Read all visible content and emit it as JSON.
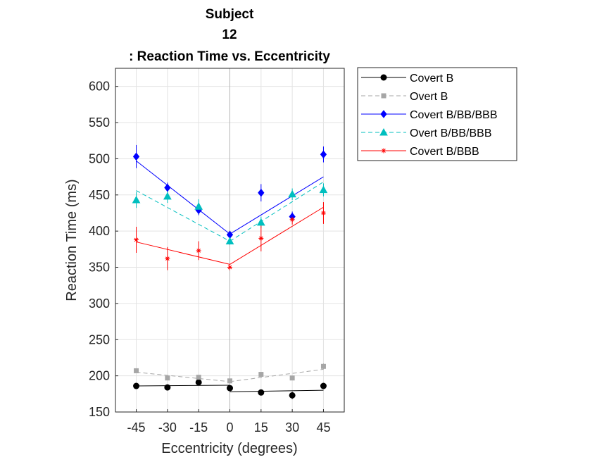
{
  "chart_data": {
    "type": "scatter",
    "title_lines": [
      "Subject",
      "12",
      ": Reaction Time vs. Eccentricity"
    ],
    "xlabel": "Eccentricity (degrees)",
    "ylabel": "Reaction Time (ms)",
    "xticks": [
      -45,
      -30,
      -15,
      0,
      15,
      30,
      45
    ],
    "xtick_labels": [
      "-45",
      "-30",
      "-15",
      "0",
      "15",
      "30",
      "45"
    ],
    "yticks": [
      150,
      200,
      250,
      300,
      350,
      400,
      450,
      500,
      550,
      600
    ],
    "ytick_labels": [
      "150",
      "200",
      "250",
      "300",
      "350",
      "400",
      "450",
      "500",
      "550",
      "600"
    ],
    "xlim": [
      -55,
      55
    ],
    "ylim": [
      150,
      625
    ],
    "grid": true,
    "legend_position": "outside-right-top",
    "series": [
      {
        "name": "Covert B",
        "color": "#000000",
        "marker": "circle",
        "line": "solid",
        "x": [
          -45,
          -30,
          -15,
          0,
          15,
          30,
          45
        ],
        "y": [
          186,
          184,
          191,
          183,
          177,
          173,
          186
        ],
        "err": [
          4,
          4,
          4,
          4,
          4,
          5,
          4
        ],
        "fit": [
          [
            [
              -45,
              186
            ],
            [
              0,
              187
            ]
          ],
          [
            [
              0,
              178
            ],
            [
              45,
              180
            ]
          ]
        ]
      },
      {
        "name": "Overt B",
        "color": "#a6a6a6",
        "marker": "square",
        "line": "dashed",
        "x": [
          -45,
          -30,
          -15,
          0,
          15,
          30,
          45
        ],
        "y": [
          207,
          197,
          198,
          193,
          202,
          197,
          213
        ],
        "err": [
          3,
          3,
          3,
          3,
          3,
          3,
          4
        ],
        "fit": [
          [
            [
              -45,
              205
            ],
            [
              0,
              192
            ]
          ],
          [
            [
              0,
              192
            ],
            [
              45,
              209
            ]
          ]
        ]
      },
      {
        "name": "Covert B/BB/BBB",
        "color": "#0000ff",
        "marker": "diamond",
        "line": "solid",
        "x": [
          -45,
          -30,
          -15,
          0,
          15,
          30,
          45
        ],
        "y": [
          503,
          460,
          429,
          395,
          453,
          420,
          506
        ],
        "err": [
          16,
          7,
          7,
          5,
          12,
          7,
          11
        ],
        "fit": [
          [
            [
              -45,
              497
            ],
            [
              0,
              396
            ]
          ],
          [
            [
              0,
              396
            ],
            [
              45,
              475
            ]
          ]
        ]
      },
      {
        "name": "Overt B/BB/BBB",
        "color": "#00bfbf",
        "marker": "triangle",
        "line": "dashed",
        "x": [
          -45,
          -30,
          -15,
          0,
          15,
          30,
          45
        ],
        "y": [
          443,
          448,
          434,
          386,
          412,
          451,
          457
        ],
        "err": [
          11,
          9,
          10,
          5,
          8,
          8,
          9
        ],
        "fit": [
          [
            [
              -45,
              456
            ],
            [
              0,
              386
            ]
          ],
          [
            [
              0,
              386
            ],
            [
              45,
              468
            ]
          ]
        ]
      },
      {
        "name": "Covert B/BBB",
        "color": "#ff0000",
        "marker": "asterisk",
        "line": "solid",
        "x": [
          -45,
          -30,
          -15,
          0,
          15,
          30,
          45
        ],
        "y": [
          388,
          362,
          373,
          350,
          390,
          416,
          425
        ],
        "err": [
          18,
          16,
          13,
          4,
          18,
          7,
          15
        ],
        "fit": [
          [
            [
              -45,
              385
            ],
            [
              0,
              354
            ]
          ],
          [
            [
              0,
              354
            ],
            [
              45,
              433
            ]
          ]
        ]
      }
    ]
  }
}
